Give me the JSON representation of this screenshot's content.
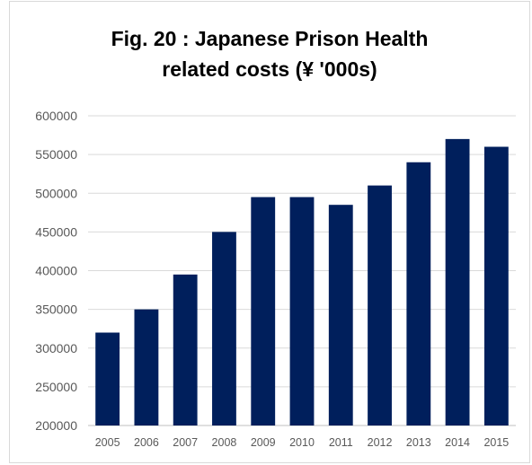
{
  "chart_data": {
    "type": "bar",
    "title_lines": [
      "Fig. 20 : Japanese Prison Health",
      "related costs (¥ '000s)"
    ],
    "categories": [
      "2005",
      "2006",
      "2007",
      "2008",
      "2009",
      "2010",
      "2011",
      "2012",
      "2013",
      "2014",
      "2015"
    ],
    "values": [
      320000,
      350000,
      395000,
      450000,
      495000,
      495000,
      485000,
      510000,
      540000,
      570000,
      560000
    ],
    "ylim": [
      200000,
      600000
    ],
    "yticks": [
      "200000",
      "250000",
      "300000",
      "350000",
      "400000",
      "450000",
      "500000",
      "550000",
      "600000"
    ],
    "grid": true,
    "legend": "none",
    "colors": {
      "bar": "#001f5c",
      "grid": "#d9d9d9",
      "axis": "#bfbfbf"
    }
  }
}
